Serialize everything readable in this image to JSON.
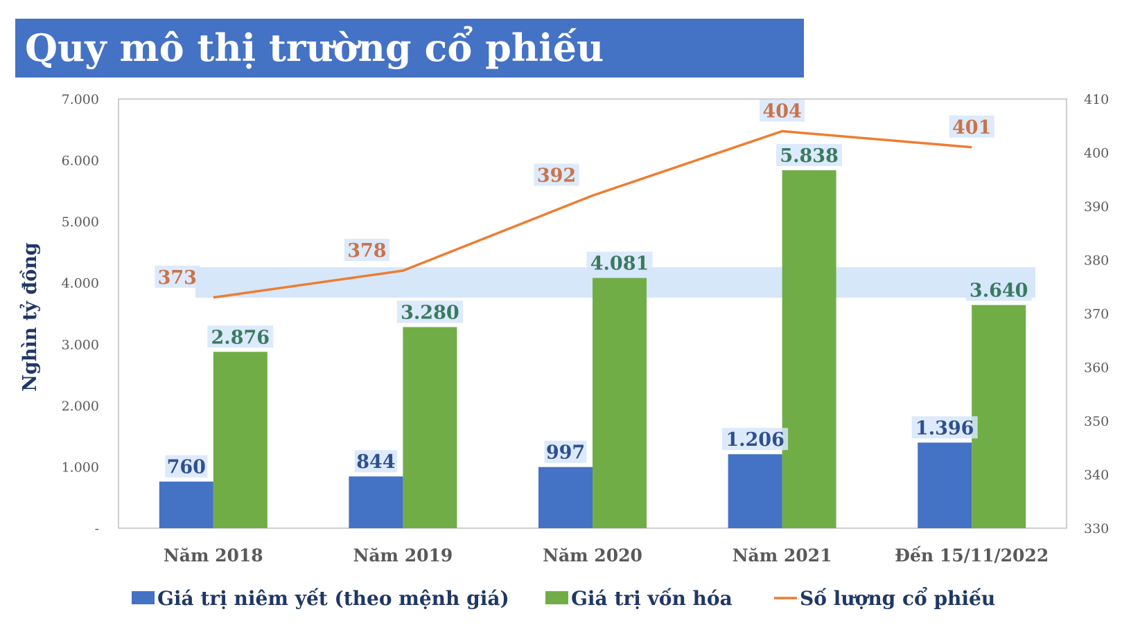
{
  "title": "Quy mô thị trường cổ phiếu",
  "chart_data": {
    "type": "bar",
    "categories": [
      "Năm 2018",
      "Năm 2019",
      "Năm 2020",
      "Năm 2021",
      "Đến 15/11/2022"
    ],
    "series": [
      {
        "name": "Giá trị niêm yết (theo mệnh giá)",
        "type": "bar",
        "axis": "left",
        "color": "#4472C4",
        "label_color": "#2F4F8F",
        "values": [
          760,
          844,
          997,
          1206,
          1396
        ],
        "labels": [
          "760",
          "844",
          "997",
          "1.206",
          "1.396"
        ]
      },
      {
        "name": "Giá trị vốn hóa",
        "type": "bar",
        "axis": "left",
        "color": "#70AD47",
        "label_color": "#3A7A60",
        "values": [
          2876,
          3280,
          4081,
          5838,
          3640
        ],
        "labels": [
          "2.876",
          "3.280",
          "4.081",
          "5.838",
          "3.640"
        ]
      },
      {
        "name": "Số lượng cổ phiếu",
        "type": "line",
        "axis": "right",
        "color": "#ED7D31",
        "label_color": "#C9734A",
        "values": [
          373,
          378,
          392,
          404,
          401
        ],
        "labels": [
          "373",
          "378",
          "392",
          "404",
          "401"
        ]
      }
    ],
    "ylabel": "Nghìn tỷ đồng",
    "y_left": {
      "min": 0,
      "max": 7000,
      "ticks": [
        0,
        1000,
        2000,
        3000,
        4000,
        5000,
        6000,
        7000
      ],
      "tick_labels": [
        "-",
        "1.000",
        "2.000",
        "3.000",
        "4.000",
        "5.000",
        "6.000",
        "7.000"
      ]
    },
    "y_right": {
      "min": 330,
      "max": 410,
      "ticks": [
        330,
        340,
        350,
        360,
        370,
        380,
        390,
        400,
        410
      ],
      "tick_labels": [
        "330",
        "340",
        "350",
        "360",
        "370",
        "380",
        "390",
        "400",
        "410"
      ]
    },
    "grid": false,
    "legend": "bottom"
  }
}
